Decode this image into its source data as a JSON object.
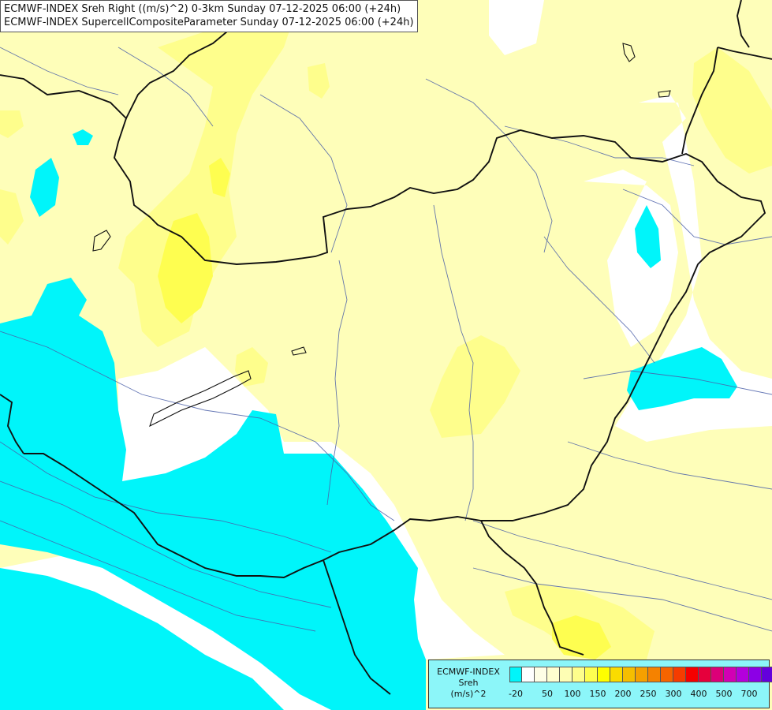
{
  "titles": {
    "line1": "ECMWF-INDEX Sreh Right ((m/s)^2) 0-3km Sunday 07-12-2025 06:00 (+24h)",
    "line2": "ECMWF-INDEX SupercellCompositeParameter Sunday 07-12-2025 06:00 (+24h)"
  },
  "legend": {
    "line1": "ECMWF-INDEX",
    "line2": "Sreh",
    "line3": "(m/s)^2",
    "colors": [
      "#00f5fa",
      "#ffffff",
      "#fefee6",
      "#fefed0",
      "#fefeb4",
      "#fefe8c",
      "#fefe50",
      "#fefe00",
      "#fadc00",
      "#f5be00",
      "#f5a000",
      "#f58200",
      "#f56400",
      "#f53c00",
      "#f50000",
      "#e6003c",
      "#dc0078",
      "#d200b4",
      "#b400dc",
      "#8c00e6",
      "#6400dc",
      "#3c00c8",
      "#1e0096",
      "#000064"
    ],
    "ticks": [
      {
        "label": "-20",
        "index": 0
      },
      {
        "label": "50",
        "index": 3
      },
      {
        "label": "100",
        "index": 5
      },
      {
        "label": "150",
        "index": 7
      },
      {
        "label": "200",
        "index": 9
      },
      {
        "label": "250",
        "index": 11
      },
      {
        "label": "300",
        "index": 13
      },
      {
        "label": "400",
        "index": 15
      },
      {
        "label": "500",
        "index": 17
      },
      {
        "label": "700",
        "index": 19
      }
    ]
  }
}
